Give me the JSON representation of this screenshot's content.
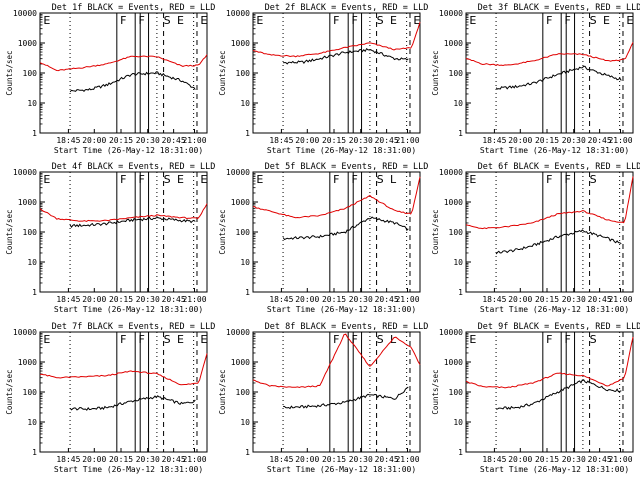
{
  "figure": {
    "axis_ylabel": "Counts/sec",
    "x_ticks": [
      "18:45",
      "20:00",
      "20:15",
      "20:30",
      "20:45",
      "21:00"
    ],
    "y_ticks": [
      "1",
      "10",
      "100",
      "1000",
      "10000"
    ],
    "colors": {
      "events": "#000000",
      "lld": "#e00000",
      "axes": "#000000"
    }
  },
  "chart_data": [
    {
      "type": "line",
      "title": "Det 1f BLACK = Events, RED = LLD",
      "xlabel": "Start Time (26-May-12 18:31:00)",
      "ylabel": "Counts/sec",
      "ylim": [
        1,
        10000
      ],
      "log_y": true,
      "markers": [
        "E",
        "F",
        "F",
        "S",
        "E",
        "E"
      ],
      "series": [
        {
          "name": "Events",
          "x": [
            0.18,
            0.3,
            0.4,
            0.55,
            0.7,
            0.85,
            0.93
          ],
          "values": [
            25,
            28,
            40,
            90,
            100,
            55,
            30
          ]
        },
        {
          "name": "LLD",
          "x": [
            0.0,
            0.1,
            0.25,
            0.4,
            0.55,
            0.7,
            0.85,
            0.95,
            1.0
          ],
          "values": [
            230,
            120,
            150,
            200,
            360,
            350,
            170,
            180,
            400
          ]
        }
      ]
    },
    {
      "type": "line",
      "title": "Det 2f BLACK = Events, RED = LLD",
      "xlabel": "Start Time (26-May-12 18:31:00)",
      "ylabel": "Counts/sec",
      "ylim": [
        1,
        10000
      ],
      "log_y": true,
      "markers": [
        "E",
        "F",
        "F",
        "S",
        "E",
        "E"
      ],
      "series": [
        {
          "name": "Events",
          "x": [
            0.18,
            0.3,
            0.4,
            0.55,
            0.7,
            0.85,
            0.93
          ],
          "values": [
            220,
            230,
            300,
            480,
            600,
            300,
            280
          ]
        },
        {
          "name": "LLD",
          "x": [
            0.0,
            0.1,
            0.25,
            0.4,
            0.55,
            0.7,
            0.85,
            0.95,
            1.0
          ],
          "values": [
            560,
            400,
            360,
            450,
            700,
            1000,
            600,
            700,
            5000
          ]
        }
      ]
    },
    {
      "type": "line",
      "title": "Det 3f BLACK = Events, RED = LLD",
      "xlabel": "Start Time (26-May-12 18:31:00)",
      "ylabel": "Counts/sec",
      "ylim": [
        1,
        10000
      ],
      "log_y": true,
      "markers": [
        "E",
        "F",
        "F",
        "S",
        "E",
        "E"
      ],
      "series": [
        {
          "name": "Events",
          "x": [
            0.18,
            0.3,
            0.4,
            0.55,
            0.7,
            0.85,
            0.93
          ],
          "values": [
            30,
            35,
            45,
            90,
            160,
            80,
            60
          ]
        },
        {
          "name": "LLD",
          "x": [
            0.0,
            0.1,
            0.25,
            0.4,
            0.55,
            0.7,
            0.85,
            0.95,
            1.0
          ],
          "values": [
            300,
            200,
            180,
            250,
            430,
            420,
            250,
            280,
            1000
          ]
        }
      ]
    },
    {
      "type": "line",
      "title": "Det 4f BLACK = Events, RED = LLD",
      "xlabel": "Start Time (26-May-12 18:31:00)",
      "ylabel": "Counts/sec",
      "ylim": [
        1,
        10000
      ],
      "log_y": true,
      "markers": [
        "E",
        "F",
        "F",
        "S",
        "E",
        "E"
      ],
      "series": [
        {
          "name": "Events",
          "x": [
            0.18,
            0.3,
            0.4,
            0.55,
            0.7,
            0.85,
            0.93
          ],
          "values": [
            160,
            170,
            190,
            250,
            290,
            240,
            220
          ]
        },
        {
          "name": "LLD",
          "x": [
            0.0,
            0.1,
            0.25,
            0.4,
            0.55,
            0.7,
            0.85,
            0.95,
            1.0
          ],
          "values": [
            600,
            280,
            230,
            240,
            300,
            360,
            300,
            280,
            900
          ]
        }
      ]
    },
    {
      "type": "line",
      "title": "Det 5f BLACK = Events, RED = LLD",
      "xlabel": "Start Time (26-May-12 18:31:00)",
      "ylabel": "Counts/sec",
      "ylim": [
        1,
        10000
      ],
      "log_y": true,
      "markers": [
        "F",
        "F",
        "S",
        "L",
        "E"
      ],
      "series": [
        {
          "name": "Events",
          "x": [
            0.18,
            0.3,
            0.4,
            0.55,
            0.7,
            0.85,
            0.93
          ],
          "values": [
            60,
            65,
            70,
            100,
            300,
            200,
            120
          ]
        },
        {
          "name": "LLD",
          "x": [
            0.0,
            0.1,
            0.25,
            0.4,
            0.55,
            0.7,
            0.85,
            0.95,
            1.0
          ],
          "values": [
            700,
            500,
            300,
            350,
            600,
            1600,
            500,
            400,
            7000
          ]
        }
      ]
    },
    {
      "type": "line",
      "title": "Det 6f BLACK = Events, RED = LLD",
      "xlabel": "Start Time (26-May-12 18:31:00)",
      "ylabel": "Counts/sec",
      "ylim": [
        1,
        10000
      ],
      "log_y": true,
      "markers": [
        "F",
        "F",
        "S",
        "E"
      ],
      "series": [
        {
          "name": "Events",
          "x": [
            0.18,
            0.3,
            0.4,
            0.55,
            0.7,
            0.85,
            0.93
          ],
          "values": [
            20,
            25,
            35,
            70,
            110,
            60,
            40
          ]
        },
        {
          "name": "LLD",
          "x": [
            0.0,
            0.1,
            0.25,
            0.4,
            0.55,
            0.7,
            0.85,
            0.95,
            1.0
          ],
          "values": [
            170,
            130,
            150,
            200,
            400,
            500,
            250,
            200,
            7000
          ]
        }
      ]
    },
    {
      "type": "line",
      "title": "Det 7f BLACK = Events, RED = LLD",
      "xlabel": "Start Time (26-May-12 18:31:00)",
      "ylabel": "Counts/sec",
      "ylim": [
        1,
        10000
      ],
      "log_y": true,
      "markers": [
        "E",
        "F",
        "F",
        "S",
        "E",
        "E"
      ],
      "series": [
        {
          "name": "Events",
          "x": [
            0.18,
            0.3,
            0.4,
            0.55,
            0.7,
            0.85,
            0.93
          ],
          "values": [
            28,
            27,
            30,
            50,
            70,
            40,
            50
          ]
        },
        {
          "name": "LLD",
          "x": [
            0.0,
            0.1,
            0.25,
            0.4,
            0.55,
            0.7,
            0.85,
            0.95,
            1.0
          ],
          "values": [
            400,
            300,
            320,
            350,
            500,
            400,
            170,
            200,
            2000
          ]
        }
      ]
    },
    {
      "type": "line",
      "title": "Det 8f BLACK = Events, RED = LLD",
      "xlabel": "Start Time (26-May-12 18:31:00)",
      "ylabel": "Counts/sec",
      "ylim": [
        1,
        10000
      ],
      "log_y": true,
      "markers": [
        "F",
        "F",
        "S",
        "L"
      ],
      "series": [
        {
          "name": "Events",
          "x": [
            0.18,
            0.3,
            0.4,
            0.55,
            0.7,
            0.85,
            0.93
          ],
          "values": [
            30,
            32,
            35,
            45,
            80,
            60,
            150
          ]
        },
        {
          "name": "LLD",
          "x": [
            0.0,
            0.1,
            0.25,
            0.4,
            0.55,
            0.7,
            0.85,
            0.95,
            1.0
          ],
          "values": [
            250,
            160,
            140,
            160,
            9000,
            700,
            7000,
            3000,
            800
          ]
        }
      ]
    },
    {
      "type": "line",
      "title": "Det 9f BLACK = Events, RED = LLD",
      "xlabel": "Start Time (26-May-12 18:31:00)",
      "ylabel": "Counts/sec",
      "ylim": [
        1,
        10000
      ],
      "log_y": true,
      "markers": [
        "F",
        "F",
        "S",
        "E"
      ],
      "series": [
        {
          "name": "Events",
          "x": [
            0.18,
            0.3,
            0.4,
            0.55,
            0.7,
            0.85,
            0.93
          ],
          "values": [
            28,
            30,
            40,
            100,
            240,
            120,
            110
          ]
        },
        {
          "name": "LLD",
          "x": [
            0.0,
            0.1,
            0.25,
            0.4,
            0.55,
            0.7,
            0.85,
            0.95,
            1.0
          ],
          "values": [
            220,
            150,
            140,
            200,
            420,
            350,
            160,
            300,
            7000
          ]
        }
      ]
    }
  ]
}
